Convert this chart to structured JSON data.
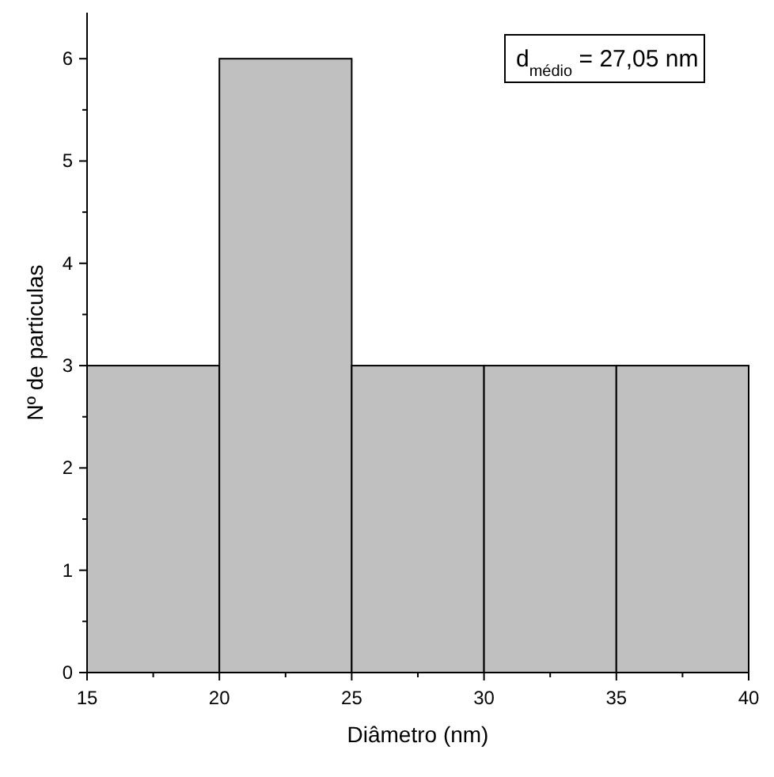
{
  "chart_data": {
    "type": "histogram",
    "xlabel": "Diâmetro (nm)",
    "ylabel": "Nº de particulas",
    "bins": [
      15,
      20,
      25,
      30,
      35,
      40
    ],
    "values": [
      3,
      6,
      3,
      3,
      3
    ],
    "color": "#c0c0c0",
    "xlim": [
      15,
      40
    ],
    "xticks": [
      15,
      20,
      25,
      30,
      35,
      40
    ],
    "ylim": [
      0,
      6.45
    ],
    "yticks": [
      0,
      1,
      2,
      3,
      4,
      5,
      6
    ],
    "annotations": [
      "d$_{médio}$ = 27,05 nm"
    ]
  }
}
